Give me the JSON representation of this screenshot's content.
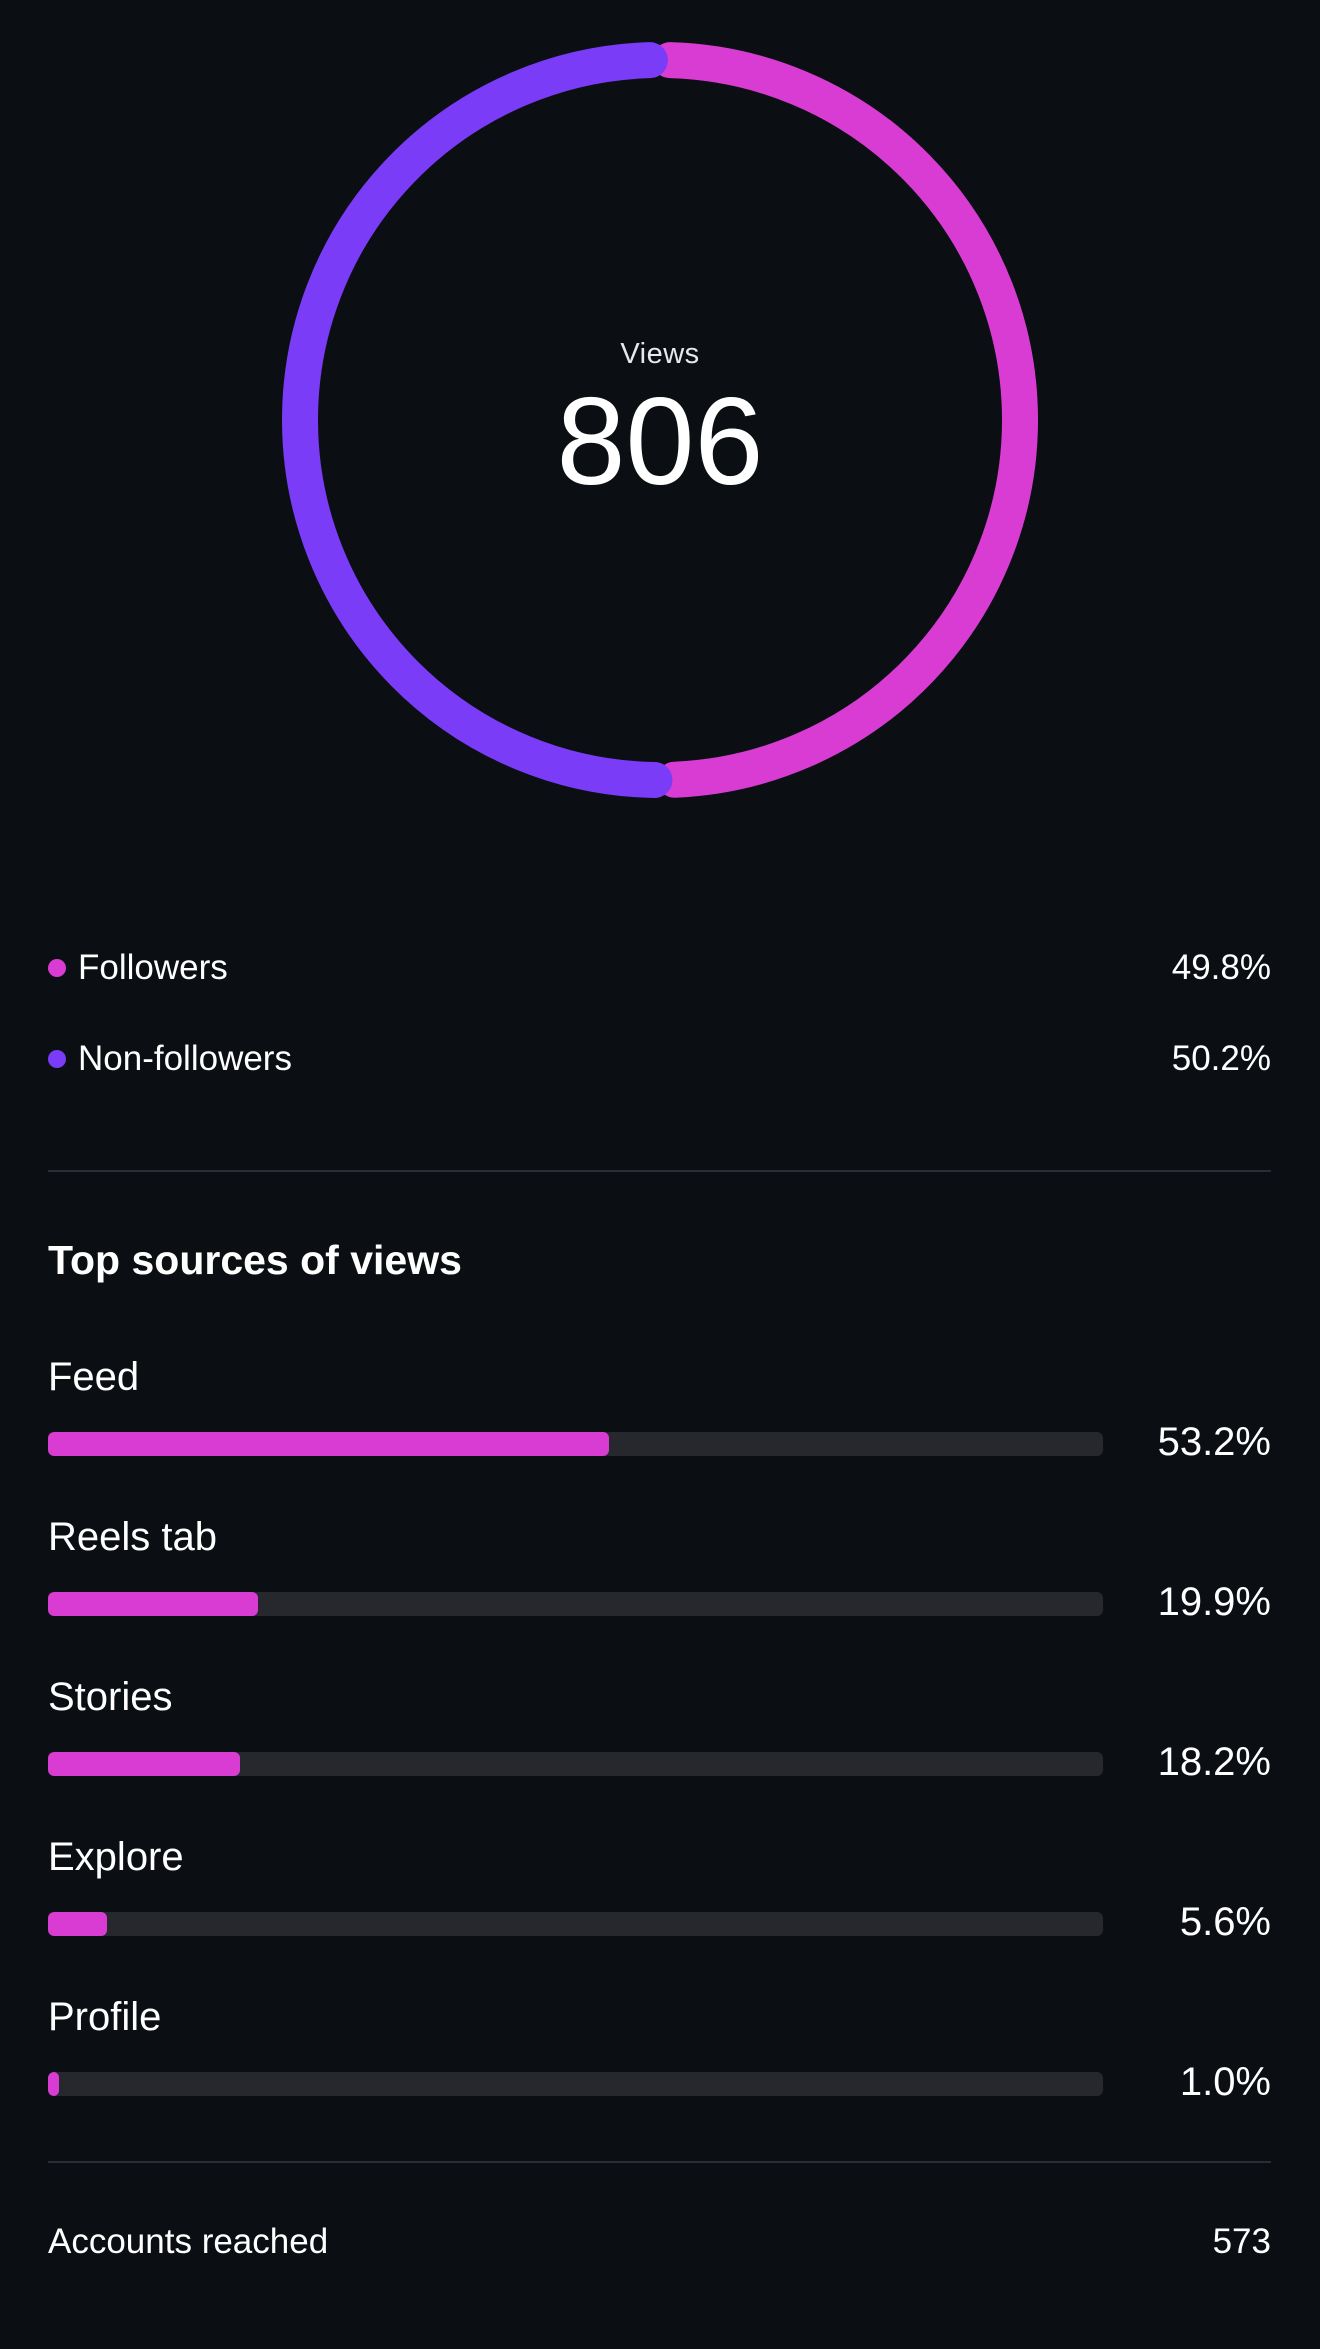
{
  "colors": {
    "background": "#0b0f14",
    "followers": "#d93cd3",
    "non_followers": "#7a3cf6",
    "bar_track": "#26282e",
    "bar_fill": "#d93cd3",
    "divider": "#2a2d33"
  },
  "summary": {
    "label": "Views",
    "value": "806"
  },
  "audience": [
    {
      "label": "Followers",
      "value": "49.8%",
      "percent": 49.8,
      "color": "#d93cd3"
    },
    {
      "label": "Non-followers",
      "value": "50.2%",
      "percent": 50.2,
      "color": "#7a3cf6"
    }
  ],
  "sources": {
    "title": "Top sources of views",
    "items": [
      {
        "label": "Feed",
        "value": "53.2%",
        "percent": 53.2
      },
      {
        "label": "Reels tab",
        "value": "19.9%",
        "percent": 19.9
      },
      {
        "label": "Stories",
        "value": "18.2%",
        "percent": 18.2
      },
      {
        "label": "Explore",
        "value": "5.6%",
        "percent": 5.6
      },
      {
        "label": "Profile",
        "value": "1.0%",
        "percent": 1.0
      }
    ]
  },
  "footer": {
    "label": "Accounts reached",
    "value": "573"
  }
}
